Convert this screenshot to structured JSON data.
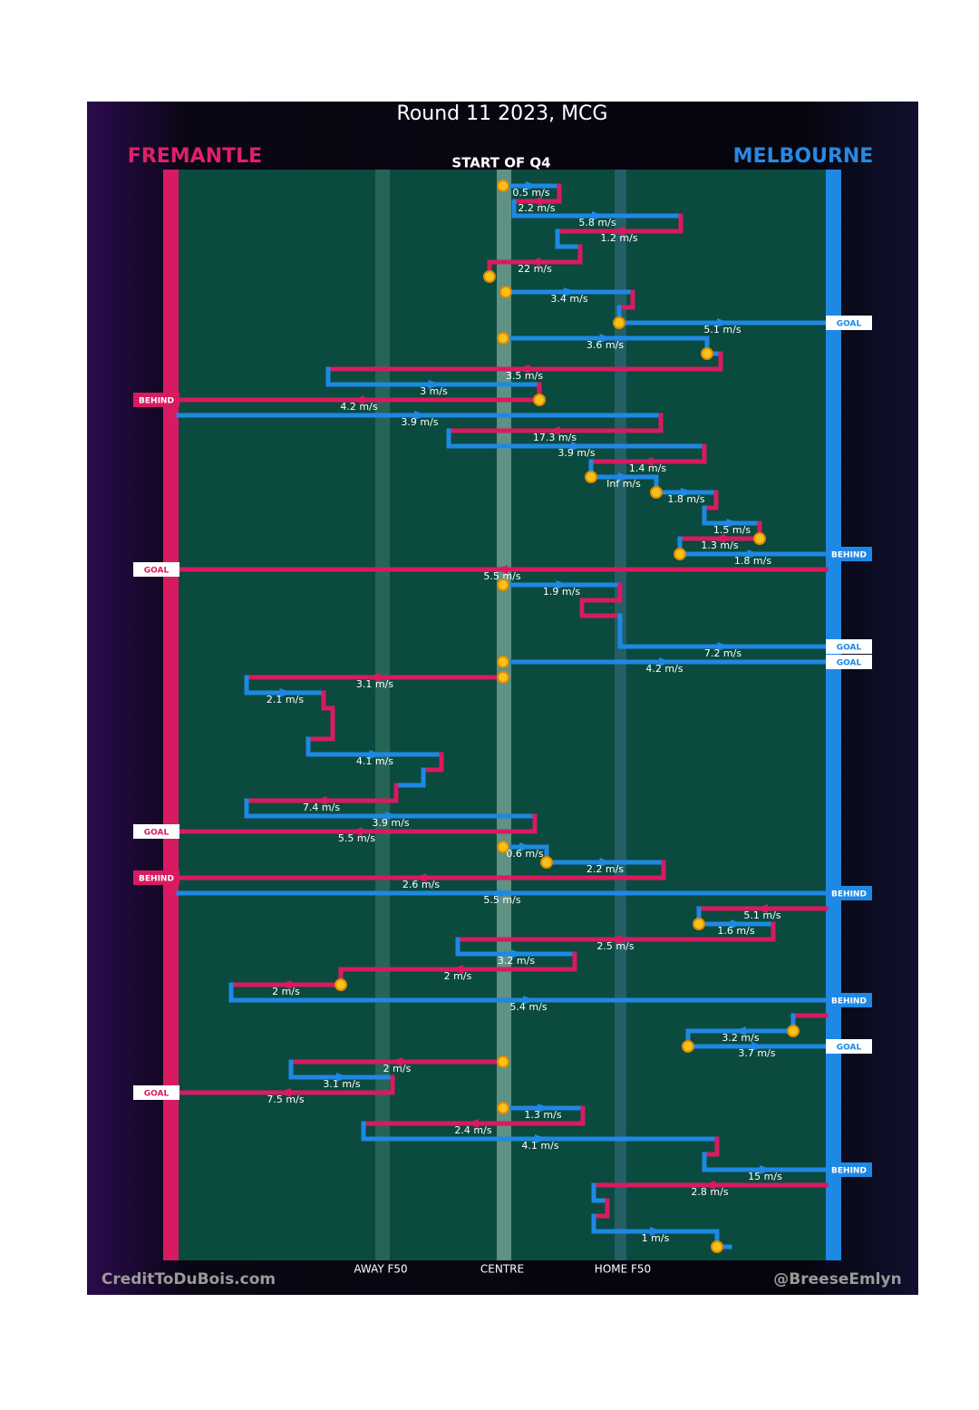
{
  "header": {
    "title": "Round 11 2023, MCG",
    "subtitle": "START OF Q4",
    "home": "FREMANTLE",
    "away": "MELBOURNE"
  },
  "axis": [
    "AWAY F50",
    "CENTRE",
    "HOME F50"
  ],
  "credits": [
    "CreditToDuBois.com",
    "@BreeseEmlyn"
  ],
  "speeds": [
    "0.5 m/s",
    "2.2 m/s",
    "5.8 m/s",
    "1.2 m/s",
    "22 m/s",
    "3.4 m/s",
    "5.1 m/s",
    "3.6 m/s",
    "3.5 m/s",
    "3 m/s",
    "4.2 m/s",
    "3.9 m/s",
    "17.3 m/s",
    "3.9 m/s",
    "1.4 m/s",
    "Inf m/s",
    "1.8 m/s",
    "1.5 m/s",
    "1.3 m/s",
    "1.8 m/s",
    "5.5 m/s",
    "1.9 m/s",
    "7.2 m/s",
    "4.2 m/s",
    "3.1 m/s",
    "2.1 m/s",
    "4.1 m/s",
    "7.4 m/s",
    "3.9 m/s",
    "5.5 m/s",
    "0.6 m/s",
    "2.2 m/s",
    "2.6 m/s",
    "5.5 m/s",
    "5.1 m/s",
    "1.6 m/s",
    "2.5 m/s",
    "3.2 m/s",
    "2 m/s",
    "2 m/s",
    "5.4 m/s",
    "3.2 m/s",
    "3.7 m/s",
    "2 m/s",
    "3.1 m/s",
    "7.5 m/s",
    "1.3 m/s",
    "2.4 m/s",
    "4.1 m/s",
    "15 m/s",
    "2.8 m/s",
    "1 m/s"
  ],
  "outcomes": [
    "GOAL",
    "BEHIND",
    "BEHIND",
    "GOAL",
    "GOAL",
    "GOAL",
    "GOAL",
    "BEHIND",
    "BEHIND",
    "BEHIND",
    "GOAL",
    "GOAL",
    "BEHIND"
  ]
}
